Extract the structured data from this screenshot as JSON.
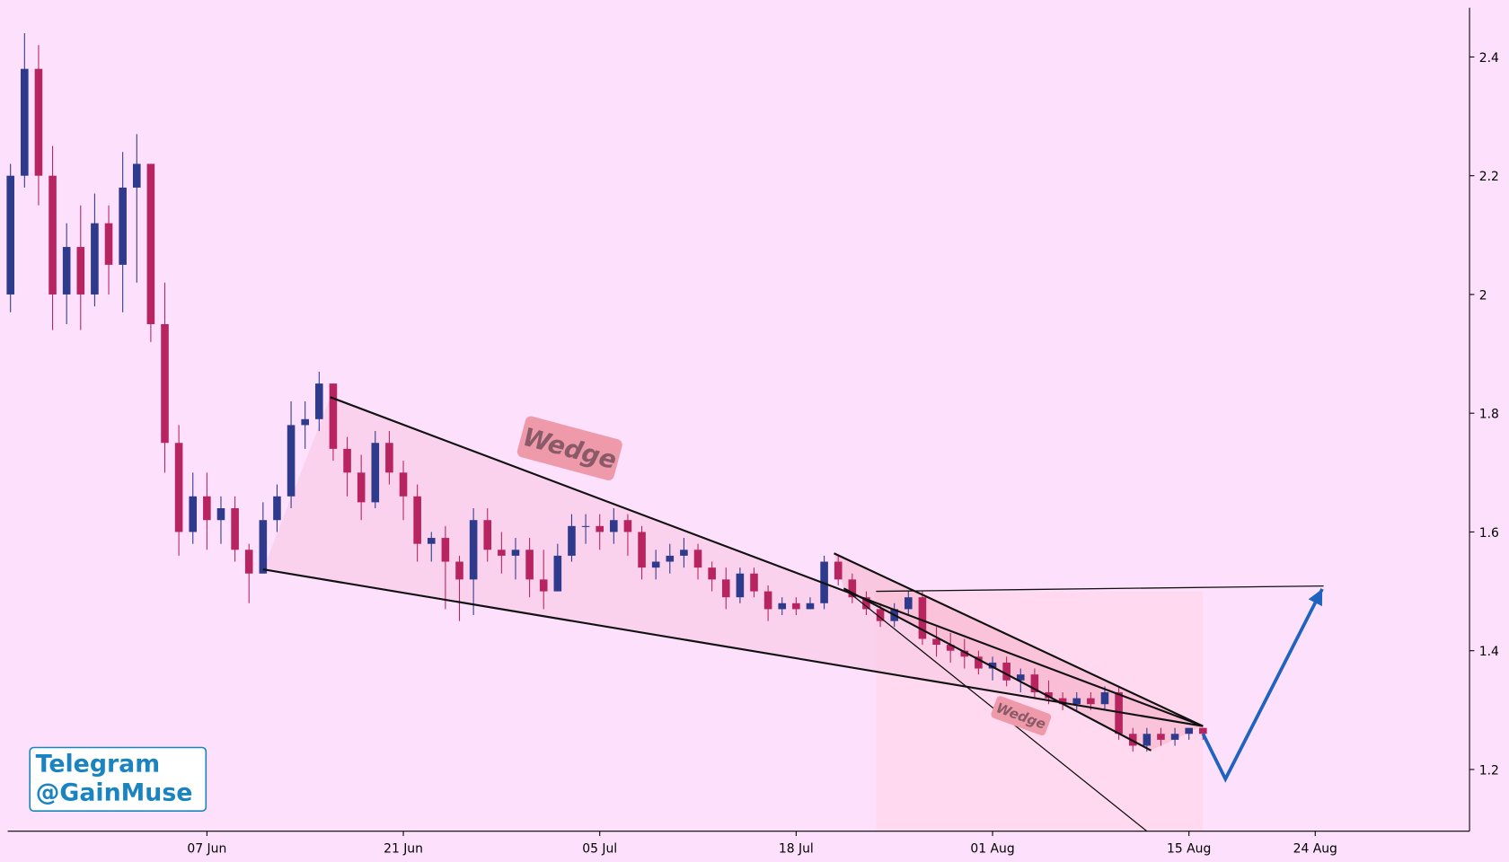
{
  "chart_data": {
    "type": "candlestick",
    "x": [
      -14,
      -13,
      -12,
      -11,
      -10,
      -9,
      -8,
      -7,
      -6,
      -5,
      -4,
      -3,
      -2,
      -1,
      0,
      1,
      2,
      3,
      4,
      5,
      6,
      7,
      8,
      9,
      10,
      11,
      12,
      13,
      14,
      15,
      16,
      17,
      18,
      19,
      20,
      21,
      22,
      23,
      24,
      25,
      26,
      27,
      28,
      29,
      30,
      31,
      32,
      33,
      34,
      35,
      36,
      37,
      38,
      39,
      40,
      41,
      42,
      43,
      44,
      45,
      46,
      47,
      48,
      49,
      50,
      51,
      52,
      53,
      54,
      55,
      56,
      57,
      58,
      59,
      60,
      61,
      62,
      63,
      64,
      65,
      66,
      67,
      68,
      69,
      70,
      71
    ],
    "open": [
      2.0,
      2.2,
      2.38,
      2.2,
      2.0,
      2.08,
      2.0,
      2.12,
      2.05,
      2.18,
      2.22,
      1.95,
      1.75,
      1.6,
      1.66,
      1.62,
      1.64,
      1.57,
      1.53,
      1.62,
      1.66,
      1.78,
      1.79,
      1.85,
      1.74,
      1.7,
      1.65,
      1.75,
      1.7,
      1.66,
      1.58,
      1.59,
      1.55,
      1.52,
      1.62,
      1.57,
      1.56,
      1.57,
      1.52,
      1.5,
      1.56,
      1.61,
      1.61,
      1.6,
      1.62,
      1.6,
      1.54,
      1.55,
      1.56,
      1.57,
      1.54,
      1.52,
      1.49,
      1.53,
      1.5,
      1.47,
      1.48,
      1.47,
      1.48,
      1.55,
      1.52,
      1.49,
      1.47,
      1.45,
      1.47,
      1.49,
      1.42,
      1.41,
      1.4,
      1.39,
      1.37,
      1.38,
      1.35,
      1.36,
      1.33,
      1.32,
      1.31,
      1.32,
      1.31,
      1.33,
      1.26,
      1.24,
      1.26,
      1.25,
      1.26,
      1.27
    ],
    "high": [
      2.22,
      2.44,
      2.42,
      2.25,
      2.12,
      2.15,
      2.17,
      2.15,
      2.24,
      2.27,
      2.22,
      2.02,
      1.78,
      1.7,
      1.7,
      1.66,
      1.66,
      1.58,
      1.65,
      1.68,
      1.82,
      1.82,
      1.87,
      1.85,
      1.76,
      1.73,
      1.77,
      1.77,
      1.72,
      1.68,
      1.6,
      1.61,
      1.56,
      1.64,
      1.64,
      1.6,
      1.59,
      1.59,
      1.57,
      1.58,
      1.63,
      1.63,
      1.63,
      1.64,
      1.63,
      1.61,
      1.57,
      1.58,
      1.59,
      1.58,
      1.55,
      1.54,
      1.54,
      1.54,
      1.51,
      1.49,
      1.49,
      1.49,
      1.56,
      1.56,
      1.53,
      1.5,
      1.48,
      1.48,
      1.5,
      1.5,
      1.44,
      1.43,
      1.42,
      1.4,
      1.39,
      1.39,
      1.37,
      1.37,
      1.35,
      1.33,
      1.33,
      1.33,
      1.34,
      1.34,
      1.27,
      1.27,
      1.27,
      1.27,
      1.27,
      1.27
    ],
    "low": [
      1.97,
      2.18,
      2.15,
      1.94,
      1.95,
      1.94,
      1.98,
      2.0,
      1.97,
      2.02,
      1.92,
      1.7,
      1.56,
      1.58,
      1.57,
      1.58,
      1.55,
      1.48,
      1.53,
      1.6,
      1.64,
      1.74,
      1.77,
      1.72,
      1.66,
      1.62,
      1.64,
      1.68,
      1.62,
      1.55,
      1.55,
      1.47,
      1.45,
      1.46,
      1.55,
      1.53,
      1.52,
      1.49,
      1.47,
      1.5,
      1.55,
      1.58,
      1.57,
      1.58,
      1.56,
      1.52,
      1.52,
      1.53,
      1.54,
      1.52,
      1.5,
      1.47,
      1.48,
      1.49,
      1.45,
      1.46,
      1.46,
      1.47,
      1.47,
      1.51,
      1.48,
      1.46,
      1.44,
      1.44,
      1.46,
      1.41,
      1.39,
      1.38,
      1.37,
      1.36,
      1.35,
      1.34,
      1.33,
      1.32,
      1.31,
      1.3,
      1.3,
      1.3,
      1.3,
      1.25,
      1.23,
      1.23,
      1.24,
      1.24,
      1.25,
      1.25
    ],
    "close": [
      2.2,
      2.38,
      2.2,
      2.0,
      2.08,
      2.0,
      2.12,
      2.05,
      2.18,
      2.22,
      1.95,
      1.75,
      1.6,
      1.66,
      1.62,
      1.64,
      1.57,
      1.53,
      1.62,
      1.66,
      1.78,
      1.79,
      1.85,
      1.74,
      1.7,
      1.65,
      1.75,
      1.7,
      1.66,
      1.58,
      1.59,
      1.55,
      1.52,
      1.62,
      1.57,
      1.56,
      1.57,
      1.52,
      1.5,
      1.56,
      1.61,
      1.61,
      1.6,
      1.62,
      1.6,
      1.54,
      1.55,
      1.56,
      1.57,
      1.54,
      1.52,
      1.49,
      1.53,
      1.5,
      1.47,
      1.48,
      1.47,
      1.48,
      1.55,
      1.52,
      1.49,
      1.47,
      1.45,
      1.47,
      1.49,
      1.42,
      1.41,
      1.4,
      1.39,
      1.37,
      1.38,
      1.35,
      1.36,
      1.33,
      1.32,
      1.31,
      1.32,
      1.31,
      1.33,
      1.26,
      1.24,
      1.26,
      1.25,
      1.26,
      1.27,
      1.26
    ],
    "up_color": "#2e3a8c",
    "down_color": "#b8245f",
    "xlim": [
      -14.2,
      90
    ],
    "xticks": [
      {
        "value": 0,
        "label": "07 Jun"
      },
      {
        "value": 14,
        "label": "21 Jun"
      },
      {
        "value": 28,
        "label": "05 Jul"
      },
      {
        "value": 42,
        "label": "18 Jul"
      },
      {
        "value": 56,
        "label": "01 Aug"
      },
      {
        "value": 70,
        "label": "15 Aug"
      },
      {
        "value": 79,
        "label": "24 Aug"
      }
    ],
    "ylim": [
      1.096,
      2.483
    ],
    "yticks": [
      1.2,
      1.4,
      1.6,
      1.8,
      2.0,
      2.2,
      2.4
    ],
    "trendlines": [
      {
        "x": [
          8.8,
          71.0
        ],
        "y": [
          1.827,
          1.273
        ]
      },
      {
        "x": [
          4.0,
          71.0
        ],
        "y": [
          1.537,
          1.273
        ]
      },
      {
        "x": [
          44.7,
          71.0
        ],
        "y": [
          1.564,
          1.273
        ]
      },
      {
        "x": [
          45.4,
          67.3
        ],
        "y": [
          1.505,
          1.232
        ]
      },
      {
        "x": [
          45.4,
          67.0
        ],
        "y": [
          1.505,
          1.096
        ]
      },
      {
        "x": [
          47.7,
          79.6
        ],
        "y": [
          1.5,
          1.509
        ]
      }
    ],
    "projection": {
      "x": [
        71.0,
        72.6,
        79.5
      ],
      "y": [
        1.26,
        1.184,
        1.504
      ],
      "color": "#1f63c0"
    },
    "annotations": [
      "Wedge",
      "Wedge"
    ],
    "watermark": [
      "Telegram",
      "@GainMuse"
    ]
  }
}
